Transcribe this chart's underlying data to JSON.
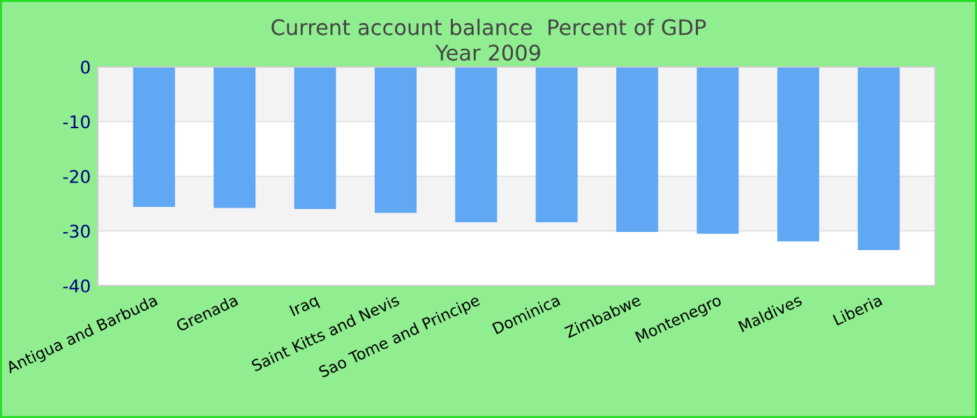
{
  "chart_data": {
    "type": "bar",
    "title": "Current account balance  Percent of GDP\nYear 2009",
    "categories": [
      "Antigua and Barbuda",
      "Grenada",
      "Iraq",
      "Saint Kitts and Nevis",
      "Sao Tome and Principe",
      "Dominica",
      "Zimbabwe",
      "Montenegro",
      "Maldives",
      "Liberia"
    ],
    "values": [
      -25.6,
      -25.8,
      -26.0,
      -26.7,
      -28.4,
      -28.4,
      -30.2,
      -30.5,
      -31.9,
      -33.5
    ],
    "color": "#60a8f4",
    "ylim": [
      -40,
      0
    ],
    "yticks": [
      0,
      -10,
      -20,
      -30,
      -40
    ],
    "grid": "y"
  }
}
